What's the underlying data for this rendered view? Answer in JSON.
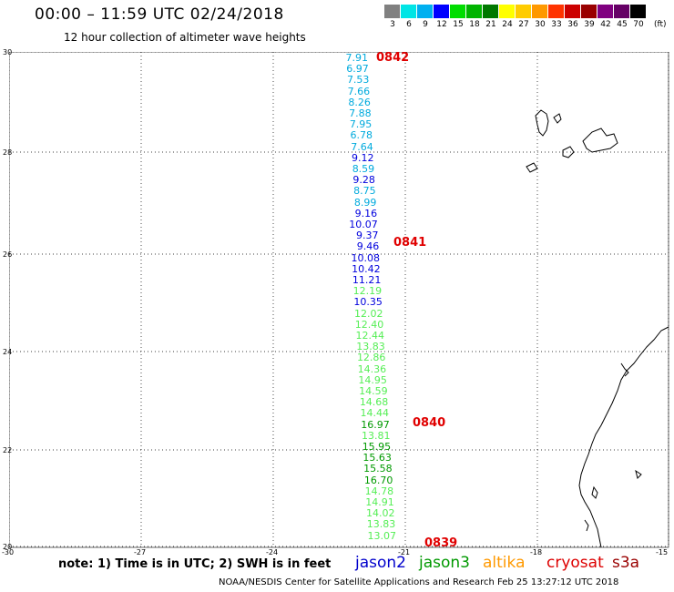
{
  "header": {
    "title": "00:00 – 11:59 UTC 02/24/2018",
    "subtitle": "12 hour collection of altimeter wave heights"
  },
  "color_scale": {
    "labels": [
      "3",
      "6",
      "9",
      "12",
      "15",
      "18",
      "21",
      "24",
      "27",
      "30",
      "33",
      "36",
      "39",
      "42",
      "45",
      "70"
    ],
    "unit": "(ft)",
    "colors": [
      "#808080",
      "#00e5e5",
      "#00b0f0",
      "#0000ff",
      "#00dd00",
      "#00b400",
      "#007800",
      "#ffff00",
      "#ffcc00",
      "#ff9900",
      "#ff3300",
      "#cc0000",
      "#990000",
      "#800080",
      "#660066",
      "#000000"
    ]
  },
  "axes": {
    "lat_labels": [
      "30",
      "28",
      "26",
      "24",
      "22",
      "20"
    ],
    "lon_labels": [
      "-30",
      "-27",
      "-24",
      "-21",
      "-18",
      "-15"
    ]
  },
  "track_readings": [
    {
      "v": "7.91",
      "c": "#00aadd"
    },
    {
      "v": "6.97",
      "c": "#00aadd"
    },
    {
      "v": "7.53",
      "c": "#00aadd"
    },
    {
      "v": "7.66",
      "c": "#00aadd"
    },
    {
      "v": "8.26",
      "c": "#00aadd"
    },
    {
      "v": "7.88",
      "c": "#00aadd"
    },
    {
      "v": "7.95",
      "c": "#00aadd"
    },
    {
      "v": "6.78",
      "c": "#00aadd"
    },
    {
      "v": "7.64",
      "c": "#00aadd"
    },
    {
      "v": "9.12",
      "c": "#0000dd"
    },
    {
      "v": "8.59",
      "c": "#00aadd"
    },
    {
      "v": "9.28",
      "c": "#0000dd"
    },
    {
      "v": "8.75",
      "c": "#00aadd"
    },
    {
      "v": "8.99",
      "c": "#00aadd"
    },
    {
      "v": "9.16",
      "c": "#0000dd"
    },
    {
      "v": "10.07",
      "c": "#0000dd"
    },
    {
      "v": "9.37",
      "c": "#0000dd"
    },
    {
      "v": "9.46",
      "c": "#0000dd"
    },
    {
      "v": "10.08",
      "c": "#0000dd"
    },
    {
      "v": "10.42",
      "c": "#0000dd"
    },
    {
      "v": "11.21",
      "c": "#0000dd"
    },
    {
      "v": "12.19",
      "c": "#55ee55"
    },
    {
      "v": "10.35",
      "c": "#0000dd"
    },
    {
      "v": "12.02",
      "c": "#55ee55"
    },
    {
      "v": "12.40",
      "c": "#55ee55"
    },
    {
      "v": "12.44",
      "c": "#55ee55"
    },
    {
      "v": "13.83",
      "c": "#55ee55"
    },
    {
      "v": "12.86",
      "c": "#55ee55"
    },
    {
      "v": "14.36",
      "c": "#55ee55"
    },
    {
      "v": "14.95",
      "c": "#55ee55"
    },
    {
      "v": "14.59",
      "c": "#55ee55"
    },
    {
      "v": "14.68",
      "c": "#55ee55"
    },
    {
      "v": "14.44",
      "c": "#55ee55"
    },
    {
      "v": "16.97",
      "c": "#009900"
    },
    {
      "v": "13.81",
      "c": "#55ee55"
    },
    {
      "v": "15.95",
      "c": "#009900"
    },
    {
      "v": "15.63",
      "c": "#009900"
    },
    {
      "v": "15.58",
      "c": "#009900"
    },
    {
      "v": "16.70",
      "c": "#009900"
    },
    {
      "v": "14.78",
      "c": "#55ee55"
    },
    {
      "v": "14.91",
      "c": "#55ee55"
    },
    {
      "v": "14.02",
      "c": "#55ee55"
    },
    {
      "v": "13.83",
      "c": "#55ee55"
    },
    {
      "v": "13.07",
      "c": "#55ee55"
    }
  ],
  "time_labels": [
    "0842",
    "0841",
    "0840",
    "0839"
  ],
  "note": "note: 1) Time is in UTC; 2) SWH is in feet",
  "satellites": [
    {
      "name": "jason2",
      "color": "#0000cc"
    },
    {
      "name": "jason3",
      "color": "#009900"
    },
    {
      "name": "altika",
      "color": "#ff9900"
    },
    {
      "name": "cryosat",
      "color": "#dd0000"
    },
    {
      "name": "s3a",
      "color": "#990000"
    }
  ],
  "footer": "NOAA/NESDIS Center for Satellite Applications and Research     Feb 25 13:27:12 UTC 2018"
}
